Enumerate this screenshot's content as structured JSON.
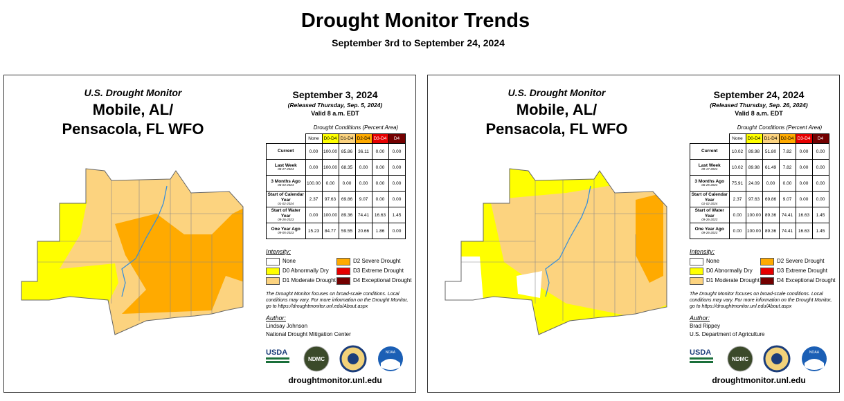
{
  "header": {
    "title": "Drought Monitor Trends",
    "subtitle": "September 3rd to September 24, 2024"
  },
  "panels": [
    {
      "agency": "U.S. Drought Monitor",
      "region_line1": "Mobile, AL/",
      "region_line2": "Pensacola, FL WFO",
      "date": "September 3, 2024",
      "released": "(Released Thursday, Sep. 5, 2024)",
      "valid": "Valid 8 a.m. EDT",
      "table_caption": "Drought Conditions (Percent Area)",
      "columns": [
        "None",
        "D0-D4",
        "D1-D4",
        "D2-D4",
        "D3-D4",
        "D4"
      ],
      "rows": [
        {
          "label": "Current",
          "values": [
            "0.00",
            "100.00",
            "85.86",
            "36.11",
            "0.00",
            "0.00"
          ]
        },
        {
          "label": "Last Week",
          "date": "08-27-2024",
          "values": [
            "0.00",
            "100.00",
            "68.35",
            "0.00",
            "0.00",
            "0.00"
          ]
        },
        {
          "label": "3 Months Ago",
          "date": "06-04-2024",
          "values": [
            "100.00",
            "0.00",
            "0.00",
            "0.00",
            "0.00",
            "0.00"
          ]
        },
        {
          "label": "Start of Calendar Year",
          "date": "01-02-2024",
          "values": [
            "2.37",
            "97.63",
            "69.86",
            "9.07",
            "0.00",
            "0.00"
          ]
        },
        {
          "label": "Start of Water Year",
          "date": "09-26-2023",
          "values": [
            "0.00",
            "100.00",
            "89.36",
            "74.41",
            "16.63",
            "1.45"
          ]
        },
        {
          "label": "One Year Ago",
          "date": "09-05-2023",
          "values": [
            "15.23",
            "84.77",
            "59.55",
            "20.66",
            "1.86",
            "0.00"
          ]
        }
      ],
      "intensity_title": "Intensity:",
      "legend": [
        "None",
        "D0 Abnormally Dry",
        "D1 Moderate Drought",
        "D2 Severe Drought",
        "D3 Extreme Drought",
        "D4 Exceptional Drought"
      ],
      "note": "The Drought Monitor focuses on broad-scale conditions. Local conditions may vary. For more information on the Drought Monitor, go to https://droughtmonitor.unl.edu/About.aspx",
      "author_title": "Author:",
      "author": [
        "Lindsay Johnson",
        "National Drought Mitigation Center"
      ],
      "logos": [
        "USDA",
        "NDMC",
        "NOAA"
      ],
      "url": "droughtmonitor.unl.edu"
    },
    {
      "agency": "U.S. Drought Monitor",
      "region_line1": "Mobile, AL/",
      "region_line2": "Pensacola, FL WFO",
      "date": "September 24, 2024",
      "released": "(Released Thursday, Sep. 26, 2024)",
      "valid": "Valid 8 a.m. EDT",
      "table_caption": "Drought Conditions (Percent Area)",
      "columns": [
        "None",
        "D0-D4",
        "D1-D4",
        "D2-D4",
        "D3-D4",
        "D4"
      ],
      "rows": [
        {
          "label": "Current",
          "values": [
            "10.02",
            "89.98",
            "51.80",
            "7.82",
            "0.00",
            "0.00"
          ]
        },
        {
          "label": "Last Week",
          "date": "09-17-2024",
          "values": [
            "10.02",
            "89.98",
            "61.49",
            "7.82",
            "0.00",
            "0.00"
          ]
        },
        {
          "label": "3 Months Ago",
          "date": "06-25-2024",
          "values": [
            "75.91",
            "24.09",
            "0.00",
            "0.00",
            "0.00",
            "0.00"
          ]
        },
        {
          "label": "Start of Calendar Year",
          "date": "01-02-2024",
          "values": [
            "2.37",
            "97.63",
            "69.86",
            "9.07",
            "0.00",
            "0.00"
          ]
        },
        {
          "label": "Start of Water Year",
          "date": "09-26-2023",
          "values": [
            "0.00",
            "100.00",
            "89.36",
            "74.41",
            "16.63",
            "1.45"
          ]
        },
        {
          "label": "One Year Ago",
          "date": "09-26-2023",
          "values": [
            "0.00",
            "100.00",
            "89.36",
            "74.41",
            "16.63",
            "1.45"
          ]
        }
      ],
      "intensity_title": "Intensity:",
      "legend": [
        "None",
        "D0 Abnormally Dry",
        "D1 Moderate Drought",
        "D2 Severe Drought",
        "D3 Extreme Drought",
        "D4 Exceptional Drought"
      ],
      "note": "The Drought Monitor focuses on broad-scale conditions. Local conditions may vary. For more information on the Drought Monitor, go to https://droughtmonitor.unl.edu/About.aspx",
      "author_title": "Author:",
      "author": [
        "Brad Rippey",
        "U.S. Department of Agriculture"
      ],
      "logos": [
        "USDA",
        "NDMC",
        "NOAA"
      ],
      "url": "droughtmonitor.unl.edu"
    }
  ]
}
